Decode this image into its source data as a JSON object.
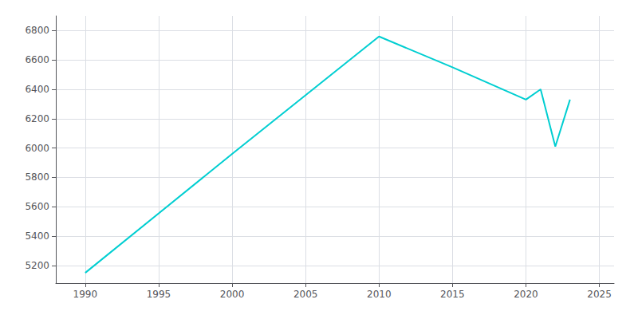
{
  "chart_data": {
    "type": "line",
    "x": [
      1990,
      2000,
      2010,
      2015,
      2020,
      2021,
      2022,
      2023
    ],
    "values": [
      5150,
      5960,
      6760,
      6550,
      6330,
      6400,
      6010,
      6330
    ],
    "color": "#00CED1",
    "xlim": [
      1988,
      2026
    ],
    "ylim": [
      5080,
      6900
    ],
    "xticks": [
      1990,
      1995,
      2000,
      2005,
      2010,
      2015,
      2020,
      2025
    ],
    "yticks": [
      5200,
      5400,
      5600,
      5800,
      6000,
      6200,
      6400,
      6600,
      6800
    ],
    "grid": true
  }
}
